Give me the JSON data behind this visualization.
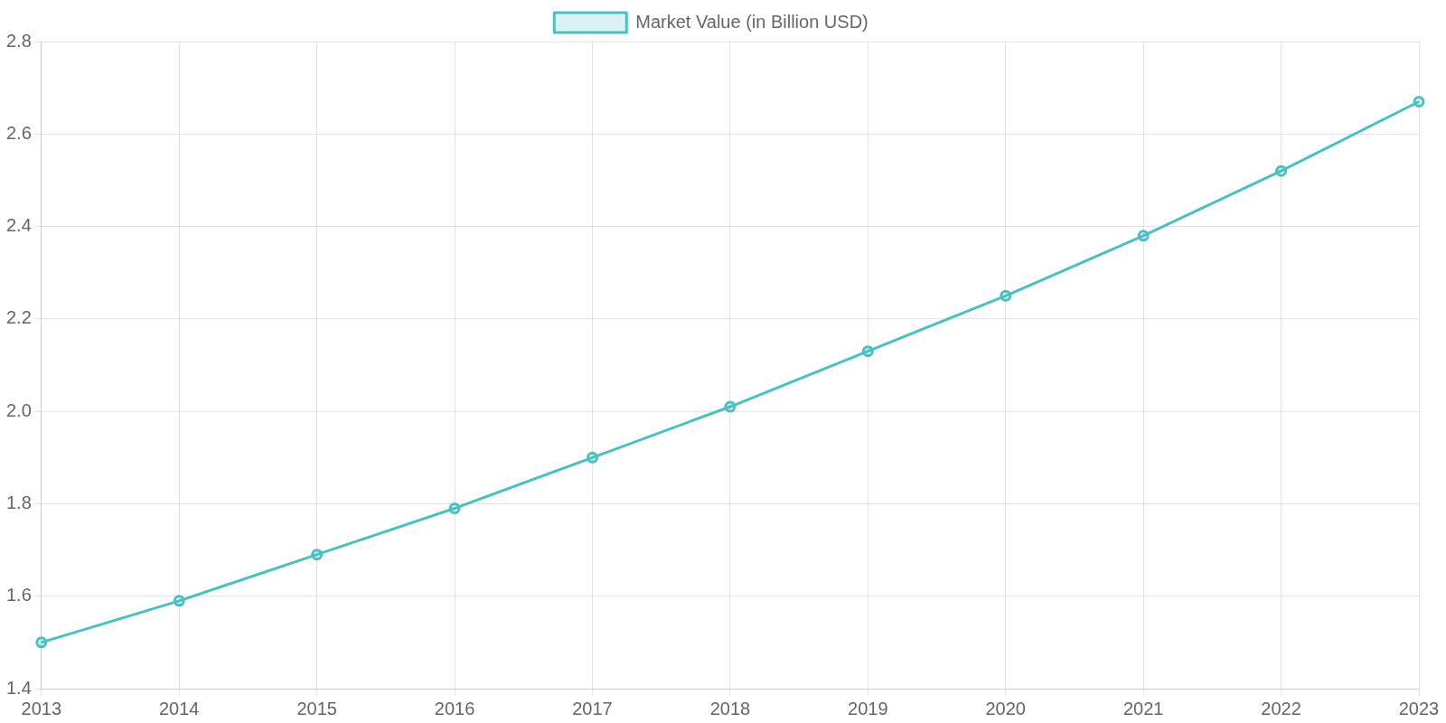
{
  "chart_data": {
    "type": "line",
    "categories": [
      "2013",
      "2014",
      "2015",
      "2016",
      "2017",
      "2018",
      "2019",
      "2020",
      "2021",
      "2022",
      "2023"
    ],
    "series": [
      {
        "name": "Market Value (in Billion USD)",
        "color": "#4bc0c0",
        "values": [
          1.5,
          1.59,
          1.69,
          1.79,
          1.9,
          2.01,
          2.13,
          2.25,
          2.38,
          2.52,
          2.67
        ]
      }
    ],
    "ylim": [
      1.4,
      2.8
    ],
    "yticks": [
      1.4,
      1.6,
      1.8,
      {
        "value": 2,
        "label": "2.0"
      },
      2.2,
      2.4,
      2.6,
      2.8
    ],
    "grid": true,
    "legend": "top",
    "marker": "circle",
    "line_style": "solid"
  }
}
